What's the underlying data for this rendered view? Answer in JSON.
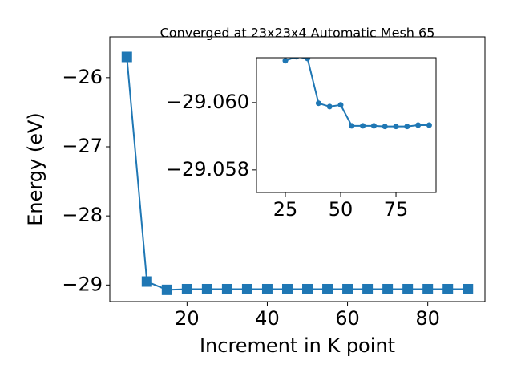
{
  "chart_data": [
    {
      "type": "line",
      "title": "Converged at 23x23x4 Automatic Mesh 65",
      "x_label": "Increment in K point",
      "y_label": "Energy (eV)",
      "x": [
        5,
        10,
        15,
        20,
        25,
        30,
        35,
        40,
        45,
        50,
        55,
        60,
        65,
        70,
        75,
        80,
        85,
        90
      ],
      "series": [
        {
          "name": "Energy",
          "color": "#1f77b4",
          "marker": "square",
          "values": [
            -25.7,
            -28.95,
            -29.07,
            -29.06,
            -29.06,
            -29.06,
            -29.06,
            -29.06,
            -29.06,
            -29.06,
            -29.06,
            -29.06,
            -29.06,
            -29.06,
            -29.06,
            -29.06,
            -29.06,
            -29.06
          ]
        }
      ],
      "xlim": [
        0.75,
        94.25
      ],
      "ylim": [
        -29.24,
        -25.41
      ],
      "xticks": [
        20,
        40,
        60,
        80
      ],
      "yticks": [
        {
          "value": -29,
          "label": "−29"
        },
        {
          "value": -28,
          "label": "−28"
        },
        {
          "value": -27,
          "label": "−27"
        },
        {
          "value": -26,
          "label": "−26"
        }
      ]
    },
    {
      "type": "line",
      "x": [
        25,
        30,
        35,
        40,
        45,
        50,
        55,
        60,
        65,
        70,
        75,
        80,
        85,
        90
      ],
      "series": [
        {
          "name": "Energy",
          "color": "#1f77b4",
          "marker": "circle",
          "values": [
            -29.06124,
            -29.06136,
            -29.06131,
            -29.05998,
            -29.05988,
            -29.05993,
            -29.05931,
            -29.05931,
            -29.05931,
            -29.05929,
            -29.05929,
            -29.05929,
            -29.05933,
            -29.05933
          ]
        }
      ],
      "xlim": [
        11.96,
        93.1
      ],
      "ylim": [
        -29.05733,
        -29.06133
      ],
      "xticks": [
        25,
        50,
        75
      ],
      "yticks": [
        {
          "value": -29.06,
          "label": "−29.060"
        },
        {
          "value": -29.058,
          "label": "−29.058"
        }
      ]
    }
  ]
}
